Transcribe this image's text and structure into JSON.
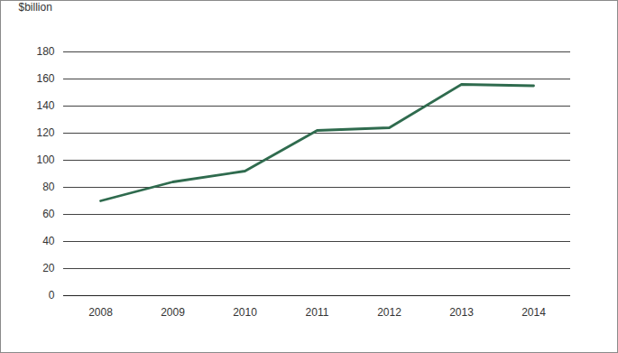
{
  "chart_data": {
    "type": "line",
    "y_label": "$billion",
    "categories": [
      "2008",
      "2009",
      "2010",
      "2011",
      "2012",
      "2013",
      "2014"
    ],
    "values": [
      70,
      84,
      92,
      122,
      124,
      156,
      155
    ],
    "color": "#2f6b4e",
    "ylim": [
      0,
      180
    ],
    "yticks": [
      0,
      20,
      40,
      60,
      80,
      100,
      120,
      140,
      160,
      180
    ],
    "grid": true
  }
}
